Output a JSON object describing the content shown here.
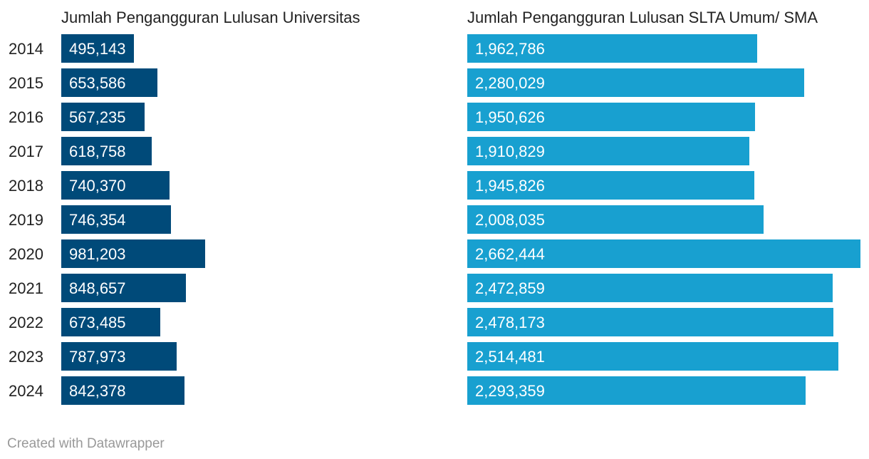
{
  "chart_data": [
    {
      "type": "bar",
      "orientation": "horizontal",
      "title": "Jumlah Pengangguran Lulusan Universitas",
      "color": "#004a79",
      "categories": [
        "2014",
        "2015",
        "2016",
        "2017",
        "2018",
        "2019",
        "2020",
        "2021",
        "2022",
        "2023",
        "2024"
      ],
      "values": [
        495143,
        653586,
        567235,
        618758,
        740370,
        746354,
        981203,
        848657,
        673485,
        787973,
        842378
      ],
      "value_labels": [
        "495,143",
        "653,586",
        "567,235",
        "618,758",
        "740,370",
        "746,354",
        "981,203",
        "848,657",
        "673,485",
        "787,973",
        "842,378"
      ]
    },
    {
      "type": "bar",
      "orientation": "horizontal",
      "title": "Jumlah Pengangguran Lulusan SLTA Umum/ SMA",
      "color": "#18a0d0",
      "categories": [
        "2014",
        "2015",
        "2016",
        "2017",
        "2018",
        "2019",
        "2020",
        "2021",
        "2022",
        "2023",
        "2024"
      ],
      "values": [
        1962786,
        2280029,
        1950626,
        1910829,
        1945826,
        2008035,
        2662444,
        2472859,
        2478173,
        2514481,
        2293359
      ],
      "value_labels": [
        "1,962,786",
        "2,280,029",
        "1,950,626",
        "1,910,829",
        "1,945,826",
        "2,008,035",
        "2,662,444",
        "2,472,859",
        "2,478,173",
        "2,514,481",
        "2,293,359"
      ]
    }
  ],
  "footer": {
    "credit": "Created with Datawrapper"
  }
}
